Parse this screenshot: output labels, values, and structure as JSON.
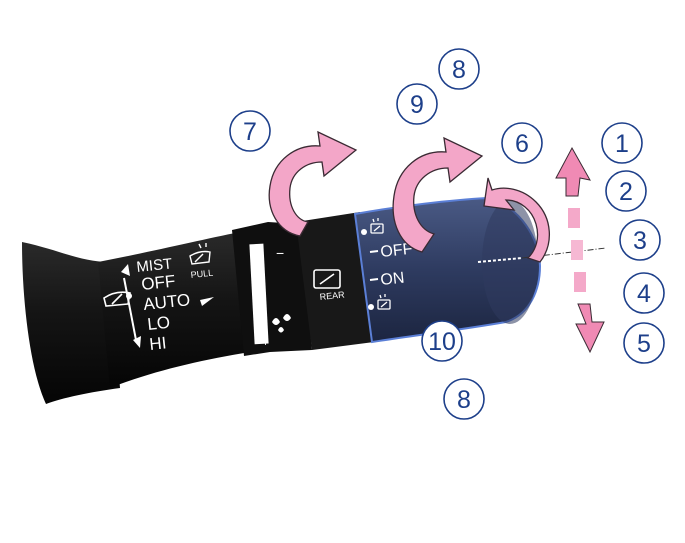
{
  "front_wiper_positions": [
    "MIST",
    "OFF",
    "AUTO",
    "LO",
    "HI"
  ],
  "pull_label": "PULL",
  "rear_label": "REAR",
  "adjust_minus": "−",
  "adjust_plus": "+",
  "rear_positions": {
    "off": "OFF",
    "on": "ON"
  },
  "callouts": {
    "c1": "1",
    "c2": "2",
    "c3": "3",
    "c4": "4",
    "c5": "5",
    "c6": "6",
    "c7": "7",
    "c8_top": "8",
    "c8_bottom": "8",
    "c9": "9",
    "c10": "10"
  },
  "colors": {
    "stalk_body": "#141414",
    "stalk_dark": "#0b0b0b",
    "rear_knob_fill": "#3b4a72",
    "rear_knob_outline": "#5b7fd6",
    "arrow_fill": "#f3a6c8",
    "arrow_stroke": "#3a2a33",
    "callout_blue": "#1d3f8a"
  },
  "icons": [
    "windshield-wiper-icon",
    "wiper-washer-icon",
    "rear-wiper-icon",
    "rear-washer-icon",
    "washer-drop-icon"
  ]
}
